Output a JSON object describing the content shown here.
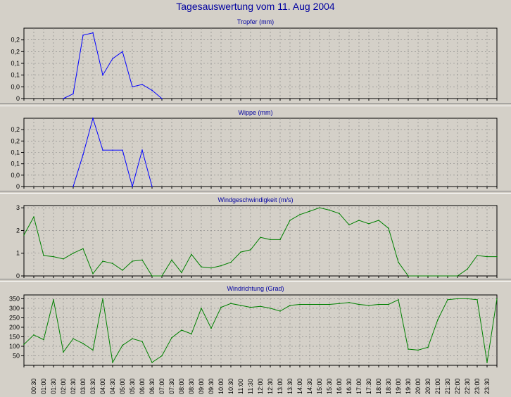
{
  "title": "Tagesauswertung vom 11. Aug 2004",
  "x_ticks": [
    "00:30",
    "01:00",
    "01:30",
    "02:00",
    "02:30",
    "03:00",
    "03:30",
    "04:00",
    "04:30",
    "05:00",
    "05:30",
    "06:00",
    "06:30",
    "07:00",
    "07:30",
    "08:00",
    "08:30",
    "09:00",
    "09:30",
    "10:00",
    "10:30",
    "11:00",
    "11:30",
    "12:00",
    "12:30",
    "13:00",
    "13:30",
    "14:00",
    "14:30",
    "15:00",
    "15:30",
    "16:00",
    "16:30",
    "17:00",
    "17:30",
    "18:00",
    "18:30",
    "19:00",
    "19:30",
    "20:00",
    "20:30",
    "21:00",
    "21:30",
    "22:00",
    "22:30",
    "23:00",
    "23:30"
  ],
  "colors": {
    "rain": "#0000ff",
    "wind": "#008000",
    "grid": "#808080",
    "plot_bg": "#d4d0c8"
  },
  "chart_data": [
    {
      "type": "line",
      "title": "Tropfer (mm)",
      "ylim": [
        0,
        0.3
      ],
      "yticks": [
        0,
        0.05,
        0.1,
        0.15,
        0.2,
        0.25
      ],
      "ytick_labels": [
        "0",
        "0,0",
        "0,1",
        "0,1",
        "0,2",
        "0,2"
      ],
      "x": [
        2.0,
        2.5,
        3.0,
        3.5,
        4.0,
        4.5,
        5.0,
        5.5,
        6.0,
        6.5,
        7.0
      ],
      "values": [
        0,
        0.02,
        0.27,
        0.28,
        0.1,
        0.17,
        0.2,
        0.05,
        0.06,
        0.035,
        0
      ]
    },
    {
      "type": "line",
      "title": "Wippe (mm)",
      "ylim": [
        0,
        0.3
      ],
      "yticks": [
        0,
        0.05,
        0.1,
        0.15,
        0.2,
        0.25
      ],
      "ytick_labels": [
        "0",
        "0,0",
        "0,1",
        "0,1",
        "0,2",
        "0,2"
      ],
      "x": [
        2.5,
        3.0,
        3.5,
        4.0,
        4.5,
        5.0,
        5.5,
        6.0,
        6.5
      ],
      "values": [
        0,
        0.14,
        0.3,
        0.16,
        0.16,
        0.16,
        0,
        0.16,
        0
      ]
    },
    {
      "type": "line",
      "title": "Windgeschwindigkeit (m/s)",
      "ylim": [
        0,
        3.1
      ],
      "yticks": [
        0,
        1,
        2,
        3
      ],
      "ytick_labels": [
        "0",
        "1",
        "2",
        "3"
      ],
      "x": [
        0,
        0.5,
        1,
        1.5,
        2,
        2.5,
        3,
        3.5,
        4,
        4.5,
        5,
        5.5,
        6,
        6.5,
        7,
        7.5,
        8,
        8.5,
        9,
        9.5,
        10,
        10.5,
        11,
        11.5,
        12,
        12.5,
        13,
        13.5,
        14,
        14.5,
        15,
        15.5,
        16,
        16.5,
        17,
        17.5,
        18,
        18.5,
        19,
        19.5,
        20,
        20.5,
        21,
        21.5,
        22,
        22.5,
        23,
        23.5,
        24
      ],
      "values": [
        1.8,
        2.6,
        0.9,
        0.85,
        0.75,
        1.0,
        1.2,
        0.1,
        0.65,
        0.55,
        0.25,
        0.65,
        0.7,
        0,
        0,
        0.7,
        0.15,
        0.95,
        0.4,
        0.35,
        0.45,
        0.6,
        1.05,
        1.15,
        1.7,
        1.6,
        1.6,
        2.45,
        2.7,
        2.85,
        3.0,
        2.9,
        2.75,
        2.25,
        2.45,
        2.3,
        2.45,
        2.1,
        0.6,
        0,
        0,
        0,
        0,
        0,
        0,
        0.3,
        0.9,
        0.85,
        0.85
      ]
    },
    {
      "type": "line",
      "title": "Windrichtung (Grad)",
      "ylim": [
        0,
        370
      ],
      "yticks": [
        50,
        100,
        150,
        200,
        250,
        300,
        350
      ],
      "ytick_labels": [
        "50",
        "100",
        "150",
        "200",
        "250",
        "300",
        "350"
      ],
      "x": [
        0,
        0.5,
        1,
        1.5,
        2,
        2.5,
        3,
        3.5,
        4,
        4.5,
        5,
        5.5,
        6,
        6.5,
        7,
        7.5,
        8,
        8.5,
        9,
        9.5,
        10,
        10.5,
        11,
        11.5,
        12,
        12.5,
        13,
        13.5,
        14,
        14.5,
        15,
        15.5,
        16,
        16.5,
        17,
        17.5,
        18,
        18.5,
        19,
        19.5,
        20,
        20.5,
        21,
        21.5,
        22,
        22.5,
        23,
        23.5,
        24
      ],
      "values": [
        110,
        160,
        135,
        345,
        70,
        140,
        115,
        80,
        350,
        15,
        105,
        140,
        125,
        15,
        50,
        145,
        185,
        165,
        300,
        195,
        305,
        325,
        315,
        305,
        310,
        300,
        285,
        315,
        320,
        320,
        320,
        320,
        325,
        330,
        320,
        315,
        320,
        320,
        345,
        85,
        80,
        95,
        240,
        345,
        350,
        350,
        345,
        15,
        350
      ]
    }
  ]
}
